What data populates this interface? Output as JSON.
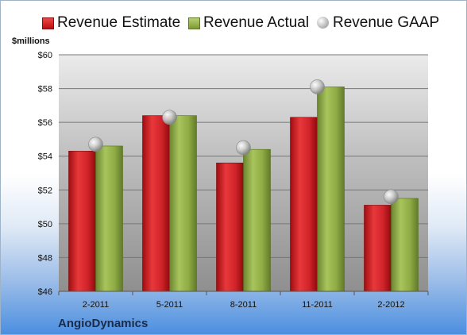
{
  "chart_data": {
    "type": "bar",
    "categories": [
      "2-2011",
      "5-2011",
      "8-2011",
      "11-2011",
      "2-2012"
    ],
    "series": [
      {
        "name": "Revenue Estimate",
        "kind": "bar",
        "color": "#d4242a",
        "values": [
          54.3,
          56.4,
          53.6,
          56.3,
          51.1
        ]
      },
      {
        "name": "Revenue Actual",
        "kind": "bar",
        "color": "#8fac45",
        "values": [
          54.6,
          56.4,
          54.4,
          58.1,
          51.5
        ]
      },
      {
        "name": "Revenue GAAP",
        "kind": "marker",
        "color": "#b5b5b5",
        "values": [
          54.7,
          56.3,
          54.5,
          58.1,
          51.6
        ]
      }
    ],
    "ylabel": "$millions",
    "ylim": [
      46,
      60
    ],
    "yticks": [
      46,
      48,
      50,
      52,
      54,
      56,
      58,
      60
    ],
    "ytick_labels": [
      "$46",
      "$48",
      "$50",
      "$52",
      "$54",
      "$56",
      "$58",
      "$60"
    ],
    "grid": true,
    "legend_position": "top",
    "footer": "AngioDynamics"
  }
}
